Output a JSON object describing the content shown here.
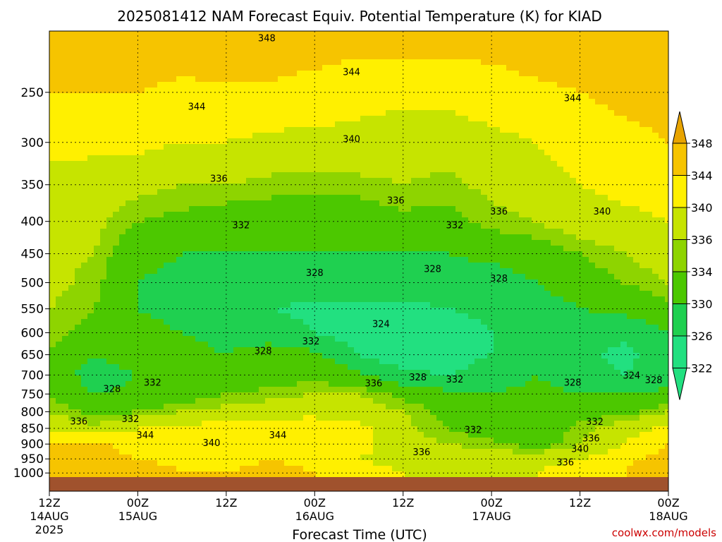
{
  "chart_data": {
    "type": "heatmap",
    "title": "2025081412 NAM Forecast Equiv. Potential Temperature (K) for KIAD",
    "xlabel": "Forecast Time (UTC)",
    "ylabel": "",
    "x_ticks": [
      {
        "hour": 0,
        "label": "12Z",
        "sub1": "14AUG",
        "sub2": "2025"
      },
      {
        "hour": 12,
        "label": "00Z",
        "sub1": "15AUG",
        "sub2": ""
      },
      {
        "hour": 24,
        "label": "12Z",
        "sub1": "",
        "sub2": ""
      },
      {
        "hour": 36,
        "label": "00Z",
        "sub1": "16AUG",
        "sub2": ""
      },
      {
        "hour": 48,
        "label": "12Z",
        "sub1": "",
        "sub2": ""
      },
      {
        "hour": 60,
        "label": "00Z",
        "sub1": "17AUG",
        "sub2": ""
      },
      {
        "hour": 72,
        "label": "12Z",
        "sub1": "",
        "sub2": ""
      },
      {
        "hour": 84,
        "label": "00Z",
        "sub1": "18AUG",
        "sub2": ""
      }
    ],
    "xlim": [
      0,
      84
    ],
    "y_ticks": [
      250,
      300,
      350,
      400,
      450,
      500,
      550,
      600,
      650,
      700,
      750,
      800,
      850,
      900,
      950,
      1000
    ],
    "ylim": [
      200,
      1015
    ],
    "y_scale": "log-pressure",
    "grid": true,
    "colorbar": {
      "labels": [
        "348",
        "344",
        "340",
        "336",
        "334",
        "330",
        "326",
        "322"
      ],
      "colors": [
        "#e8a400",
        "#f6c400",
        "#fff000",
        "#c6e400",
        "#8ed400",
        "#4cc800",
        "#1fd050",
        "#22e080"
      ]
    },
    "field": {
      "hours": [
        0,
        6,
        12,
        18,
        24,
        30,
        36,
        42,
        48,
        54,
        60,
        66,
        72,
        78,
        84
      ],
      "levels": [
        200,
        250,
        300,
        350,
        400,
        450,
        500,
        550,
        600,
        650,
        700,
        750,
        800,
        850,
        900,
        950,
        1000
      ],
      "values": [
        [
          347,
          346,
          347,
          347,
          348,
          348,
          347,
          346,
          346,
          346,
          346,
          347,
          347,
          348,
          348
        ],
        [
          344,
          344,
          344,
          343,
          343,
          343,
          342,
          341,
          341,
          341,
          342,
          343,
          344,
          345,
          345
        ],
        [
          341,
          341,
          341,
          340,
          340,
          339,
          339,
          339,
          338,
          338,
          339,
          340,
          342,
          343,
          344
        ],
        [
          339,
          338,
          337,
          336,
          336,
          335,
          335,
          335,
          336,
          335,
          337,
          338,
          340,
          341,
          342
        ],
        [
          338,
          337,
          334,
          333,
          332,
          332,
          332,
          332,
          333,
          333,
          335,
          336,
          338,
          339,
          340
        ],
        [
          337,
          336,
          331,
          330,
          330,
          330,
          330,
          330,
          330,
          330,
          331,
          332,
          334,
          336,
          338
        ],
        [
          337,
          335,
          330,
          329,
          329,
          329,
          328,
          328,
          328,
          328,
          328,
          330,
          332,
          334,
          336
        ],
        [
          336,
          334,
          330,
          329,
          329,
          326,
          325,
          325,
          325,
          326,
          327,
          328,
          330,
          331,
          333
        ],
        [
          335,
          333,
          331,
          330,
          329,
          328,
          326,
          324,
          323,
          324,
          326,
          327,
          328,
          327,
          330
        ],
        [
          334,
          330,
          332,
          331,
          330,
          332,
          331,
          326,
          323,
          324,
          326,
          327,
          327,
          325,
          328
        ],
        [
          333,
          328,
          330,
          331,
          331,
          332,
          333,
          331,
          327,
          326,
          328,
          330,
          328,
          326,
          328
        ],
        [
          334,
          330,
          331,
          332,
          334,
          335,
          336,
          336,
          333,
          331,
          330,
          331,
          330,
          330,
          331
        ],
        [
          336,
          333,
          334,
          336,
          337,
          338,
          339,
          338,
          336,
          333,
          331,
          332,
          332,
          333,
          336
        ],
        [
          340,
          337,
          340,
          341,
          342,
          343,
          342,
          341,
          337,
          334,
          332,
          331,
          335,
          338,
          341
        ],
        [
          344,
          345,
          342,
          341,
          343,
          344,
          342,
          341,
          338,
          336,
          335,
          332,
          336,
          340,
          344
        ],
        [
          345,
          346,
          344,
          343,
          343,
          344,
          343,
          340,
          339,
          338,
          338,
          339,
          340,
          343,
          346
        ],
        [
          346,
          347,
          346,
          344,
          344,
          345,
          344,
          341,
          340,
          339,
          339,
          340,
          342,
          344,
          347
        ]
      ]
    },
    "contour_labels": [
      {
        "text": "348",
        "hour": 29.5,
        "p": 205
      },
      {
        "text": "344",
        "hour": 41.0,
        "p": 232
      },
      {
        "text": "344",
        "hour": 20.0,
        "p": 263
      },
      {
        "text": "344",
        "hour": 71.0,
        "p": 255
      },
      {
        "text": "340",
        "hour": 41.0,
        "p": 296
      },
      {
        "text": "336",
        "hour": 23.0,
        "p": 342
      },
      {
        "text": "336",
        "hour": 47.0,
        "p": 370
      },
      {
        "text": "336",
        "hour": 61.0,
        "p": 385
      },
      {
        "text": "340",
        "hour": 75.0,
        "p": 385
      },
      {
        "text": "332",
        "hour": 26.0,
        "p": 405
      },
      {
        "text": "332",
        "hour": 55.0,
        "p": 405
      },
      {
        "text": "328",
        "hour": 36.0,
        "p": 482
      },
      {
        "text": "328",
        "hour": 52.0,
        "p": 475
      },
      {
        "text": "328",
        "hour": 61.0,
        "p": 492
      },
      {
        "text": "324",
        "hour": 45.0,
        "p": 580
      },
      {
        "text": "332",
        "hour": 35.5,
        "p": 618
      },
      {
        "text": "328",
        "hour": 29.0,
        "p": 640
      },
      {
        "text": "324",
        "hour": 79.0,
        "p": 700
      },
      {
        "text": "328",
        "hour": 8.5,
        "p": 735
      },
      {
        "text": "332",
        "hour": 14.0,
        "p": 718
      },
      {
        "text": "336",
        "hour": 44.0,
        "p": 720
      },
      {
        "text": "328",
        "hour": 50.0,
        "p": 705
      },
      {
        "text": "332",
        "hour": 55.0,
        "p": 710
      },
      {
        "text": "328",
        "hour": 71.0,
        "p": 718
      },
      {
        "text": "328",
        "hour": 82.0,
        "p": 712
      },
      {
        "text": "336",
        "hour": 4.0,
        "p": 827
      },
      {
        "text": "332",
        "hour": 11.0,
        "p": 820
      },
      {
        "text": "344",
        "hour": 13.0,
        "p": 870
      },
      {
        "text": "340",
        "hour": 22.0,
        "p": 895
      },
      {
        "text": "344",
        "hour": 31.0,
        "p": 870
      },
      {
        "text": "332",
        "hour": 57.5,
        "p": 853
      },
      {
        "text": "332",
        "hour": 74.0,
        "p": 828
      },
      {
        "text": "336",
        "hour": 73.5,
        "p": 880
      },
      {
        "text": "340",
        "hour": 72.0,
        "p": 915
      },
      {
        "text": "336",
        "hour": 50.5,
        "p": 925
      },
      {
        "text": "336",
        "hour": 70.0,
        "p": 960
      }
    ],
    "credit": "coolwx.com/models"
  }
}
